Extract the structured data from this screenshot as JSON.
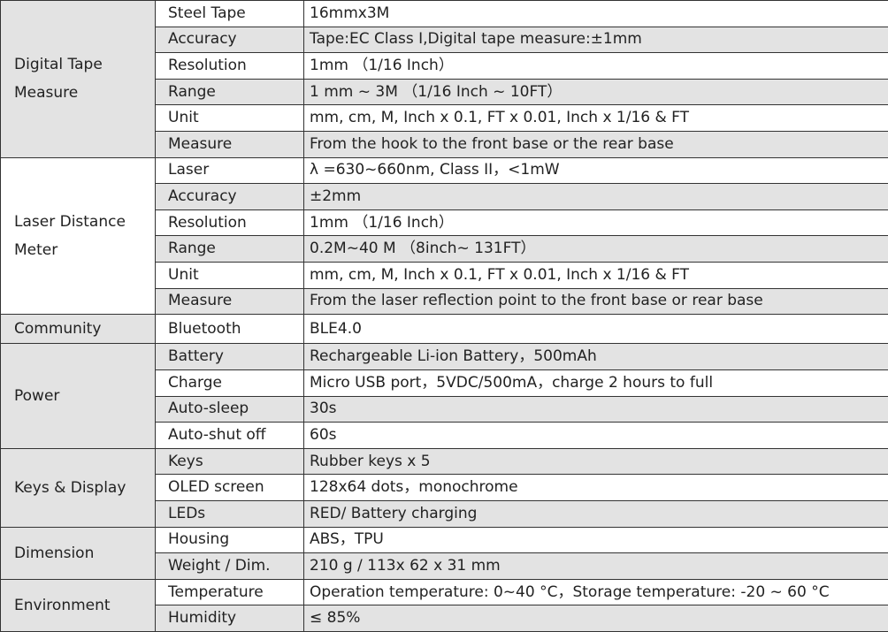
{
  "table": {
    "groups": [
      {
        "label": "Digital Tape Measure",
        "rows": [
          [
            "Steel Tape",
            "16mmx3M"
          ],
          [
            "Accuracy",
            "Tape:EC Class I,Digital tape measure:±1mm"
          ],
          [
            "Resolution",
            "1mm （1/16 Inch）"
          ],
          [
            "Range",
            "1 mm ~ 3M （1/16 Inch ~ 10FT）"
          ],
          [
            "Unit",
            "mm, cm, M, Inch x 0.1, FT x 0.01, Inch x 1/16 & FT"
          ],
          [
            "Measure",
            "From the hook to the front base or the rear base"
          ]
        ]
      },
      {
        "label": "Laser Distance Meter",
        "rows": [
          [
            "Laser",
            "λ =630~660nm, Class II，<1mW"
          ],
          [
            "Accuracy",
            "±2mm"
          ],
          [
            "Resolution",
            "1mm （1/16 Inch）"
          ],
          [
            "Range",
            "0.2M~40 M （8inch~ 131FT）"
          ],
          [
            "Unit",
            "mm, cm, M, Inch x 0.1, FT x 0.01, Inch x 1/16 & FT"
          ],
          [
            "Measure",
            "From the laser reflection point to the front base or rear base"
          ]
        ]
      },
      {
        "label": "Community",
        "rows": [
          [
            "Bluetooth",
            "BLE4.0"
          ]
        ]
      },
      {
        "label": "Power",
        "rows": [
          [
            "Battery",
            "Rechargeable Li-ion Battery，500mAh"
          ],
          [
            "Charge",
            "Micro USB port，5VDC/500mA，charge 2 hours to full"
          ],
          [
            "Auto-sleep",
            "30s"
          ],
          [
            "Auto-shut off",
            "60s"
          ]
        ]
      },
      {
        "label": "Keys & Display",
        "rows": [
          [
            "Keys",
            "Rubber keys x 5"
          ],
          [
            "OLED screen",
            "128x64 dots，monochrome"
          ],
          [
            "LEDs",
            "RED/ Battery charging"
          ]
        ]
      },
      {
        "label": "Dimension",
        "rows": [
          [
            "Housing",
            "ABS，TPU"
          ],
          [
            "Weight / Dim.",
            "210 g / 113x 62 x 31 mm"
          ]
        ]
      },
      {
        "label": "Environment",
        "rows": [
          [
            "Temperature",
            "Operation temperature: 0~40 °C，Storage temperature: -20 ~ 60 °C"
          ],
          [
            "Humidity",
            "≤ 85%"
          ]
        ]
      }
    ]
  }
}
